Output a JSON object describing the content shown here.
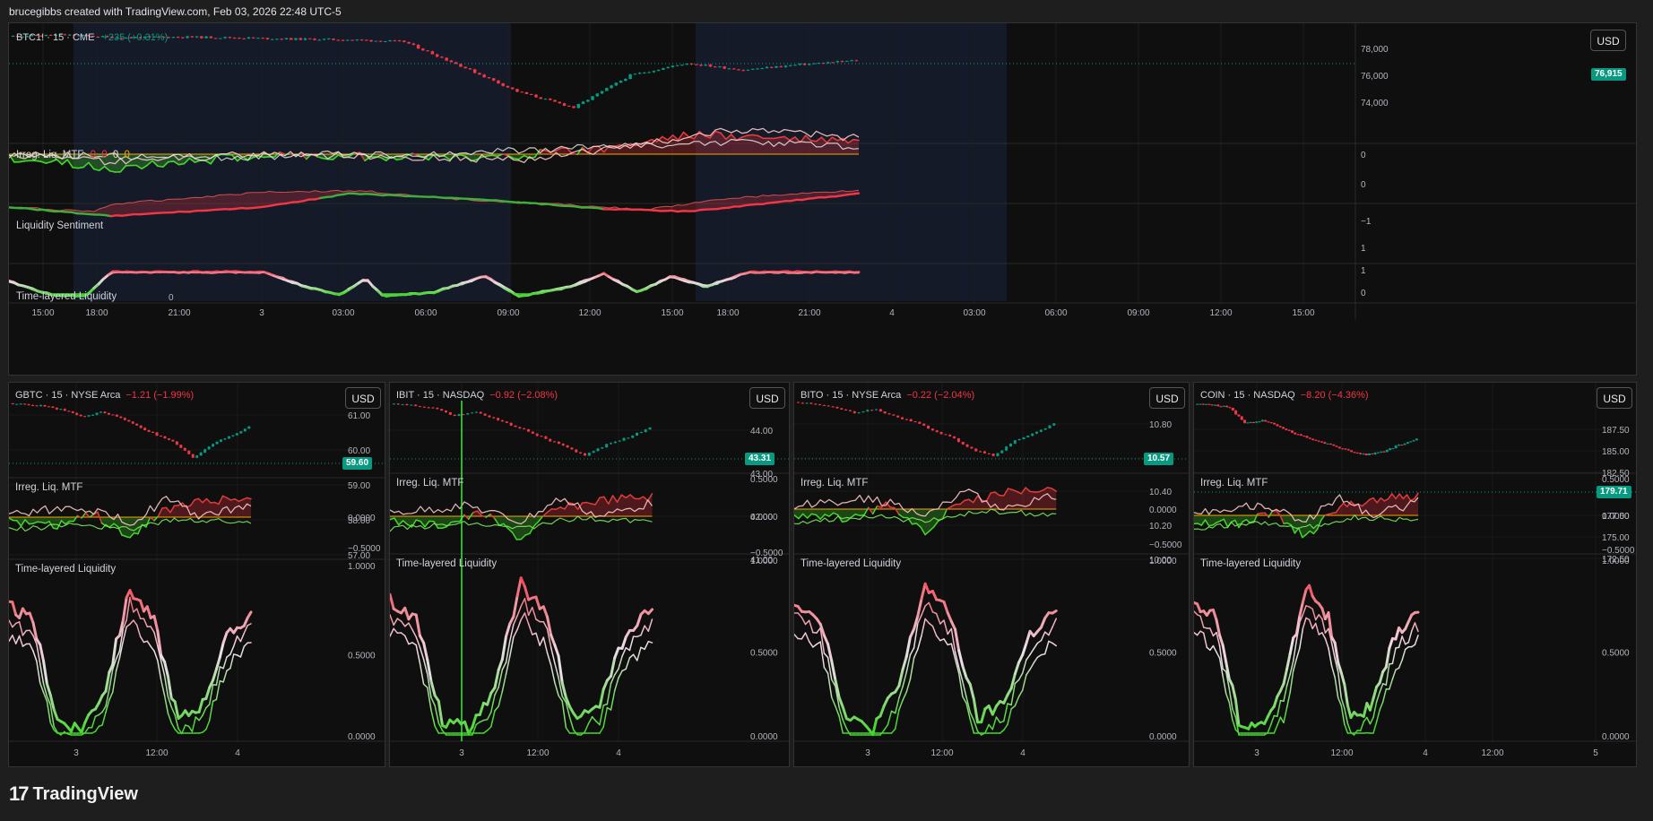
{
  "credit": "brucegibbs created with TradingView.com, Feb 03, 2026 22:48 UTC-5",
  "brand": "TradingView",
  "colors": {
    "up": "#089981",
    "down": "#f23645",
    "bg": "#0f0f0f",
    "grid": "#1f1f1f",
    "liq_red": "#f23645",
    "liq_green": "#44d62c"
  },
  "main": {
    "header": {
      "symbol": "BTC1! · 15 · CME",
      "change": "+235 (+0.31%)"
    },
    "currency": "USD",
    "price_tag": "76,915",
    "price_scale": [
      "78,000",
      "76,000",
      "74,000"
    ],
    "time_axis": [
      "15:00",
      "18:00",
      "21:00",
      "3",
      "03:00",
      "06:00",
      "09:00",
      "12:00",
      "15:00",
      "18:00",
      "21:00",
      "4",
      "03:00",
      "06:00",
      "09:00",
      "12:00",
      "15:00"
    ],
    "indicators": [
      {
        "label": "Irreg. Liq. MTF",
        "values": [
          "0",
          "0",
          "0",
          "0"
        ],
        "scale": [
          "0"
        ]
      },
      {
        "label": "Liquidity Sentiment",
        "scale": [
          "0",
          "−1"
        ]
      },
      {
        "label": "Time-layered Liquidity",
        "marker": "0",
        "scale": [
          "1",
          "1",
          "0"
        ]
      }
    ]
  },
  "panels": [
    {
      "symbol": "GBTC · 15 · NYSE Arca",
      "change": "−1.21 (−1.99%)",
      "currency": "USD",
      "price_tag": "59.60",
      "price_scale": [
        "61.00",
        "60.00",
        "59.00",
        "58.00",
        "57.00"
      ],
      "irreg_label": "Irreg. Liq. MTF",
      "irreg_scale": [
        "0.0000",
        "−0.5000"
      ],
      "tll_label": "Time-layered Liquidity",
      "tll_scale": [
        "1.0000",
        "0.5000",
        "0.0000"
      ],
      "time_axis": [
        "3",
        "12:00",
        "4"
      ]
    },
    {
      "symbol": "IBIT · 15 · NASDAQ",
      "change": "−0.92 (−2.08%)",
      "currency": "USD",
      "price_tag": "43.31",
      "price_scale": [
        "44.00",
        "43.00",
        "42.00",
        "41.00"
      ],
      "irreg_label": "Irreg. Liq. MTF",
      "irreg_scale": [
        "0.5000",
        "0.0000",
        "−0.5000"
      ],
      "tll_label": "Time-layered Liquidity",
      "tll_scale": [
        "1.0000",
        "0.5000",
        "0.0000"
      ],
      "time_axis": [
        "3",
        "12:00",
        "4"
      ]
    },
    {
      "symbol": "BITO · 15 · NYSE Arca",
      "change": "−0.22 (−2.04%)",
      "currency": "USD",
      "price_tag": "10.57",
      "price_scale": [
        "10.80",
        "10.60",
        "10.40",
        "10.20",
        "10.00"
      ],
      "irreg_label": "Irreg. Liq. MTF",
      "irreg_scale": [
        "0.0000",
        "−0.5000"
      ],
      "tll_label": "Time-layered Liquidity",
      "tll_scale": [
        "1.0000",
        "0.5000",
        "0.0000"
      ],
      "time_axis": [
        "3",
        "12:00",
        "4"
      ]
    },
    {
      "symbol": "COIN · 15 · NASDAQ",
      "change": "−8.20 (−4.36%)",
      "currency": "USD",
      "price_tag": "179.71",
      "price_scale": [
        "187.50",
        "185.00",
        "182.50",
        "177.50",
        "175.00",
        "172.50"
      ],
      "irreg_label": "Irreg. Liq. MTF",
      "irreg_scale": [
        "0.5000",
        "0.0000",
        "−0.5000"
      ],
      "tll_label": "Time-layered Liquidity",
      "tll_scale": [
        "1.0000",
        "0.5000",
        "0.0000"
      ],
      "time_axis": [
        "3",
        "12:00",
        "4",
        "12:00",
        "5"
      ]
    }
  ],
  "chart_data": [
    {
      "type": "line",
      "title": "BTC1! · 15 · CME",
      "note": "candlestick",
      "ylim": [
        73000,
        79000
      ],
      "x": [
        "3 15:00",
        "3 18:00",
        "3 21:00",
        "4 00:00",
        "4 03:00",
        "4 06:00",
        "4 09:00",
        "4 12:00",
        "4 15:00",
        "4 18:00",
        "4 21:00",
        "4 22:45"
      ],
      "values": [
        78800,
        78700,
        78650,
        78600,
        78600,
        78500,
        78400,
        76200,
        73800,
        76600,
        76300,
        76915
      ]
    },
    {
      "type": "line",
      "title": "GBTC · 15 · NYSE Arca",
      "note": "candlestick",
      "ylim": [
        56.5,
        61.5
      ],
      "x": [
        "3 09:30",
        "3 12:00",
        "3 14:00",
        "3 15:00",
        "3 16:00",
        "4 09:30",
        "4 12:00",
        "4 14:00",
        "4 15:00",
        "4 16:00"
      ],
      "values": [
        61.3,
        61.0,
        60.3,
        60.6,
        60.0,
        59.8,
        58.7,
        57.3,
        58.4,
        59.6
      ]
    },
    {
      "type": "line",
      "title": "IBIT · 15 · NASDAQ",
      "note": "candlestick",
      "ylim": [
        41,
        45
      ],
      "x": [
        "3 09:30",
        "3 12:00",
        "3 14:00",
        "3 15:00",
        "3 16:00",
        "4 09:30",
        "4 12:00",
        "4 14:00",
        "4 15:00",
        "4 16:00"
      ],
      "values": [
        44.9,
        44.6,
        44.1,
        44.3,
        43.6,
        43.2,
        42.4,
        41.4,
        42.3,
        43.31
      ]
    },
    {
      "type": "line",
      "title": "BITO · 15 · NYSE Arca",
      "note": "candlestick",
      "ylim": [
        10.0,
        10.9
      ],
      "x": [
        "3 09:30",
        "3 12:00",
        "3 14:00",
        "3 15:00",
        "3 16:00",
        "4 09:30",
        "4 12:00",
        "4 14:00",
        "4 15:00",
        "4 16:00"
      ],
      "values": [
        10.88,
        10.84,
        10.74,
        10.78,
        10.65,
        10.6,
        10.38,
        10.12,
        10.33,
        10.57
      ]
    },
    {
      "type": "line",
      "title": "COIN · 15 · NASDAQ",
      "note": "candlestick",
      "ylim": [
        172.5,
        190
      ],
      "x": [
        "3 09:30",
        "3 12:00",
        "3 14:00",
        "3 15:00",
        "3 16:00",
        "4 09:30",
        "4 12:00",
        "4 14:00",
        "4 15:00",
        "4 16:00"
      ],
      "values": [
        189.5,
        188.4,
        183.5,
        184.5,
        181.5,
        179.5,
        177.0,
        175.2,
        176.5,
        179.71
      ]
    }
  ]
}
